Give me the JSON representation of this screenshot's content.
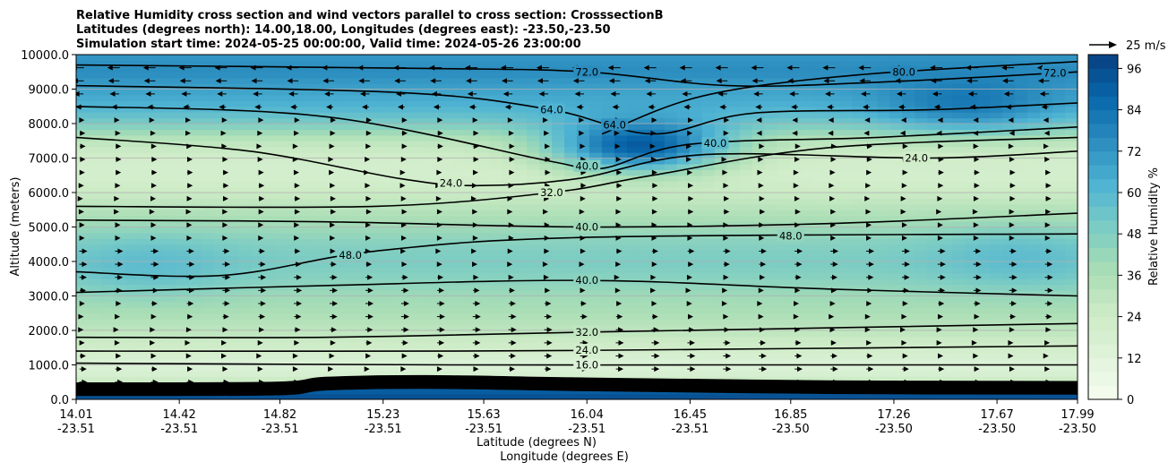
{
  "chart_data": {
    "type": "heatmap",
    "title_lines": [
      "Relative Humidity cross section and wind vectors parallel to cross section: CrosssectionB",
      "Latitudes (degrees north): 14.00,18.00, Longitudes (degrees east): -23.50,-23.50",
      "Simulation start time: 2024-05-25 00:00:00, Valid time: 2024-05-26 23:00:00"
    ],
    "xlabel": "Latitude (degrees N)",
    "xlabel2": "Longitude (degrees E)",
    "ylabel": "Altitude (meters)",
    "x_ticks": [
      {
        "lat": "14.01",
        "lon": "-23.51"
      },
      {
        "lat": "14.42",
        "lon": "-23.51"
      },
      {
        "lat": "14.82",
        "lon": "-23.51"
      },
      {
        "lat": "15.23",
        "lon": "-23.51"
      },
      {
        "lat": "15.63",
        "lon": "-23.51"
      },
      {
        "lat": "16.04",
        "lon": "-23.51"
      },
      {
        "lat": "16.45",
        "lon": "-23.51"
      },
      {
        "lat": "16.85",
        "lon": "-23.50"
      },
      {
        "lat": "17.26",
        "lon": "-23.50"
      },
      {
        "lat": "17.67",
        "lon": "-23.50"
      },
      {
        "lat": "17.99",
        "lon": "-23.50"
      }
    ],
    "x_tick_values": [
      14.01,
      14.42,
      14.82,
      15.23,
      15.63,
      16.04,
      16.45,
      16.85,
      17.26,
      17.67,
      17.99
    ],
    "xlim": [
      14.01,
      17.99
    ],
    "y_ticks": [
      "0.0",
      "1000.0",
      "2000.0",
      "3000.0",
      "4000.0",
      "5000.0",
      "6000.0",
      "7000.0",
      "8000.0",
      "9000.0",
      "10000.0"
    ],
    "ylim": [
      0,
      10000
    ],
    "grid": "horizontal",
    "colorbar": {
      "label": "Relative Humidity %",
      "ticks": [
        "0",
        "12",
        "24",
        "36",
        "48",
        "60",
        "72",
        "84",
        "96"
      ],
      "range": [
        0,
        100
      ],
      "colormap": "GnBu",
      "colors": [
        "#f7fcf0",
        "#e0f3db",
        "#ccebc5",
        "#a8ddb5",
        "#7bccc4",
        "#4eb3d3",
        "#2b8cbe",
        "#0868ac",
        "#084081"
      ]
    },
    "wind_key": {
      "label": "25 m/s",
      "value": 25
    },
    "humidity_profile": [
      {
        "z": 0,
        "rh": 96
      },
      {
        "z": 300,
        "rh": 90
      },
      {
        "z": 600,
        "rh": 20
      },
      {
        "z": 1000,
        "rh": 15
      },
      {
        "z": 1500,
        "rh": 22
      },
      {
        "z": 2000,
        "rh": 30
      },
      {
        "z": 2500,
        "rh": 36
      },
      {
        "z": 3000,
        "rh": 40
      },
      {
        "z": 3500,
        "rh": 46
      },
      {
        "z": 4000,
        "rh": 50
      },
      {
        "z": 4500,
        "rh": 47
      },
      {
        "z": 5000,
        "rh": 40
      },
      {
        "z": 5500,
        "rh": 33
      },
      {
        "z": 6000,
        "rh": 25
      },
      {
        "z": 6500,
        "rh": 20
      },
      {
        "z": 7000,
        "rh": 22
      },
      {
        "z": 7500,
        "rh": 30
      },
      {
        "z": 8000,
        "rh": 50
      },
      {
        "z": 8500,
        "rh": 62
      },
      {
        "z": 9000,
        "rh": 68
      },
      {
        "z": 9500,
        "rh": 75
      },
      {
        "z": 10000,
        "rh": 72
      }
    ],
    "moist_patches": [
      {
        "x": 16.25,
        "z": 7400,
        "rh": 92
      },
      {
        "x": 17.55,
        "z": 8700,
        "rh": 82
      },
      {
        "x": 14.3,
        "z": 3900,
        "rh": 58
      },
      {
        "x": 17.75,
        "z": 4100,
        "rh": 58
      }
    ],
    "contours": [
      {
        "level": 16.0,
        "points": [
          [
            14.01,
            1050
          ],
          [
            15.5,
            1000
          ],
          [
            16.5,
            1000
          ],
          [
            17.99,
            1000
          ]
        ],
        "labels": [
          {
            "x": 16.04,
            "text": "16.0"
          }
        ]
      },
      {
        "level": 24.0,
        "points": [
          [
            14.01,
            1400
          ],
          [
            15.5,
            1400
          ],
          [
            16.5,
            1450
          ],
          [
            17.99,
            1550
          ]
        ],
        "labels": [
          {
            "x": 16.04,
            "text": "24.0"
          }
        ]
      },
      {
        "level": 32.0,
        "points": [
          [
            14.01,
            1800
          ],
          [
            15.0,
            1800
          ],
          [
            16.04,
            1950
          ],
          [
            17.99,
            2200
          ]
        ],
        "labels": [
          {
            "x": 16.04,
            "text": "32.0"
          }
        ]
      },
      {
        "level": 40.0,
        "points": [
          [
            14.01,
            3100
          ],
          [
            15.0,
            3300
          ],
          [
            16.04,
            3450
          ],
          [
            17.0,
            3200
          ],
          [
            17.99,
            3000
          ]
        ],
        "labels": [
          {
            "x": 16.04,
            "text": "40.0"
          }
        ]
      },
      {
        "level": 48.0,
        "points": [
          [
            14.01,
            3700
          ],
          [
            14.6,
            3600
          ],
          [
            15.2,
            4300
          ],
          [
            16.04,
            4700
          ],
          [
            17.99,
            4800
          ]
        ],
        "labels": [
          {
            "x": 15.1,
            "text": "48.0"
          },
          {
            "x": 16.85,
            "text": "48.0"
          }
        ]
      },
      {
        "level": 40.0,
        "points": [
          [
            14.01,
            5200
          ],
          [
            15.0,
            5150
          ],
          [
            16.04,
            5000
          ],
          [
            17.0,
            5100
          ],
          [
            17.99,
            5400
          ]
        ],
        "labels": [
          {
            "x": 16.04,
            "text": "40.0"
          }
        ]
      },
      {
        "level": 32.0,
        "points": [
          [
            14.01,
            5600
          ],
          [
            15.2,
            5600
          ],
          [
            15.9,
            6000
          ],
          [
            16.3,
            6500
          ],
          [
            17.0,
            7300
          ],
          [
            17.99,
            7600
          ]
        ],
        "labels": [
          {
            "x": 15.9,
            "text": "32.0"
          }
        ]
      },
      {
        "level": 24.0,
        "points": [
          [
            14.01,
            7600
          ],
          [
            14.7,
            7200
          ],
          [
            15.3,
            6400
          ],
          [
            15.6,
            6200
          ],
          [
            16.0,
            6400
          ],
          [
            16.5,
            7100
          ],
          [
            17.4,
            7000
          ],
          [
            17.99,
            7200
          ]
        ],
        "labels": [
          {
            "x": 15.5,
            "text": "24.0"
          },
          {
            "x": 17.35,
            "text": "24.0"
          }
        ]
      },
      {
        "level": 40.0,
        "points": [
          [
            14.01,
            8500
          ],
          [
            15.0,
            8200
          ],
          [
            15.9,
            6900
          ],
          [
            16.1,
            6700
          ],
          [
            16.45,
            7400
          ],
          [
            17.2,
            7600
          ],
          [
            17.99,
            7900
          ]
        ],
        "labels": [
          {
            "x": 16.04,
            "text": "40.0"
          },
          {
            "x": 16.55,
            "text": "40.0"
          }
        ]
      },
      {
        "level": 64.0,
        "points": [
          [
            14.01,
            9100
          ],
          [
            15.3,
            8900
          ],
          [
            15.9,
            8400
          ],
          [
            16.3,
            7700
          ],
          [
            16.7,
            8300
          ],
          [
            17.4,
            8400
          ],
          [
            17.99,
            8600
          ]
        ],
        "labels": [
          {
            "x": 15.9,
            "text": "64.0"
          },
          {
            "x": 16.15,
            "text": "64.0"
          }
        ]
      },
      {
        "level": 72.0,
        "points": [
          [
            14.01,
            9700
          ],
          [
            15.4,
            9600
          ],
          [
            16.04,
            9500
          ],
          [
            16.6,
            9100
          ],
          [
            17.2,
            9200
          ],
          [
            17.99,
            9500
          ]
        ],
        "labels": [
          {
            "x": 16.04,
            "text": "72.0"
          },
          {
            "x": 17.9,
            "text": "72.0"
          }
        ]
      },
      {
        "level": 80.0,
        "points": [
          [
            16.1,
            7700
          ],
          [
            16.5,
            8800
          ],
          [
            17.1,
            9400
          ],
          [
            17.99,
            9800
          ]
        ],
        "labels": [
          {
            "x": 17.3,
            "text": "80.0"
          }
        ]
      }
    ]
  }
}
